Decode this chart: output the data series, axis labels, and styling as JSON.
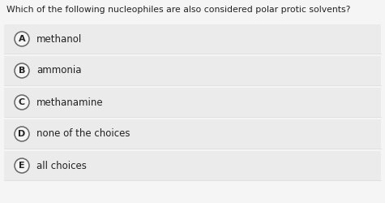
{
  "question": "Which of the following nucleophiles are also considered polar protic solvents?",
  "choices": [
    {
      "label": "A",
      "text": "methanol"
    },
    {
      "label": "B",
      "text": "ammonia"
    },
    {
      "label": "C",
      "text": "methanamine"
    },
    {
      "label": "D",
      "text": "none of the choices"
    },
    {
      "label": "E",
      "text": "all choices"
    }
  ],
  "bg_color": "#f5f5f5",
  "choice_bg_color": "#ebebeb",
  "separator_color": "#d8d8d8",
  "text_color": "#222222",
  "circle_edge_color": "#666666",
  "circle_face_color": "#f5f5f5",
  "question_fontsize": 7.8,
  "choice_fontsize": 8.5,
  "label_fontsize": 8.0
}
